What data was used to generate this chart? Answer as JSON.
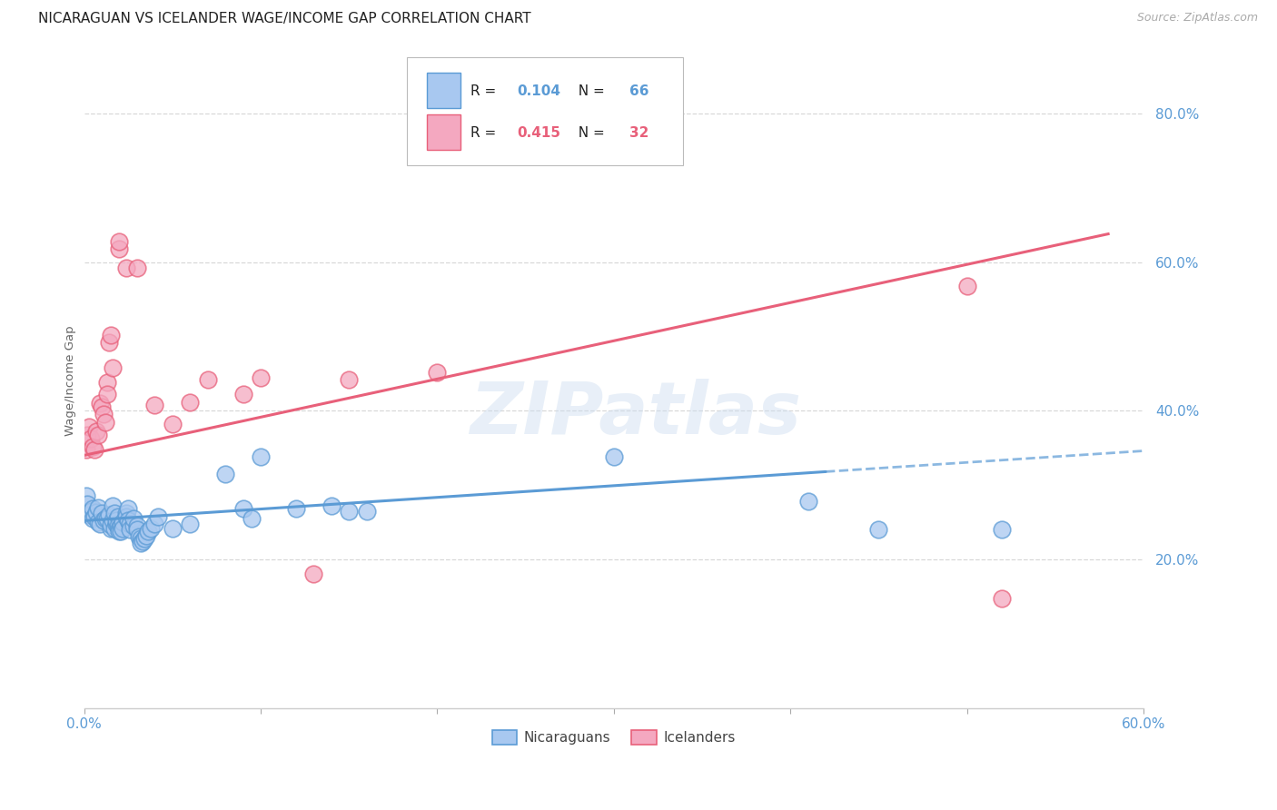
{
  "title": "NICARAGUAN VS ICELANDER WAGE/INCOME GAP CORRELATION CHART",
  "source": "Source: ZipAtlas.com",
  "ylabel": "Wage/Income Gap",
  "xlim": [
    0.0,
    0.6
  ],
  "ylim": [
    0.0,
    0.88
  ],
  "yticks": [
    0.2,
    0.4,
    0.6,
    0.8
  ],
  "xticks": [
    0.0,
    0.1,
    0.2,
    0.3,
    0.4,
    0.5,
    0.6
  ],
  "xtick_labels": [
    "0.0%",
    "",
    "",
    "",
    "",
    "",
    "60.0%"
  ],
  "ytick_labels": [
    "20.0%",
    "40.0%",
    "60.0%",
    "80.0%"
  ],
  "r_blue": 0.104,
  "n_blue": 66,
  "r_pink": 0.415,
  "n_pink": 32,
  "blue_scatter": [
    [
      0.001,
      0.285
    ],
    [
      0.002,
      0.275
    ],
    [
      0.003,
      0.26
    ],
    [
      0.004,
      0.265
    ],
    [
      0.005,
      0.268
    ],
    [
      0.005,
      0.255
    ],
    [
      0.006,
      0.258
    ],
    [
      0.007,
      0.263
    ],
    [
      0.008,
      0.27
    ],
    [
      0.008,
      0.25
    ],
    [
      0.009,
      0.248
    ],
    [
      0.01,
      0.262
    ],
    [
      0.011,
      0.252
    ],
    [
      0.012,
      0.255
    ],
    [
      0.013,
      0.255
    ],
    [
      0.014,
      0.26
    ],
    [
      0.015,
      0.242
    ],
    [
      0.015,
      0.246
    ],
    [
      0.016,
      0.253
    ],
    [
      0.016,
      0.272
    ],
    [
      0.017,
      0.262
    ],
    [
      0.017,
      0.242
    ],
    [
      0.018,
      0.248
    ],
    [
      0.018,
      0.252
    ],
    [
      0.019,
      0.258
    ],
    [
      0.019,
      0.245
    ],
    [
      0.02,
      0.242
    ],
    [
      0.02,
      0.238
    ],
    [
      0.021,
      0.245
    ],
    [
      0.021,
      0.238
    ],
    [
      0.022,
      0.25
    ],
    [
      0.022,
      0.242
    ],
    [
      0.024,
      0.262
    ],
    [
      0.024,
      0.258
    ],
    [
      0.025,
      0.268
    ],
    [
      0.025,
      0.252
    ],
    [
      0.026,
      0.248
    ],
    [
      0.026,
      0.24
    ],
    [
      0.028,
      0.245
    ],
    [
      0.028,
      0.255
    ],
    [
      0.03,
      0.245
    ],
    [
      0.03,
      0.24
    ],
    [
      0.031,
      0.23
    ],
    [
      0.032,
      0.228
    ],
    [
      0.032,
      0.222
    ],
    [
      0.033,
      0.225
    ],
    [
      0.034,
      0.228
    ],
    [
      0.035,
      0.232
    ],
    [
      0.036,
      0.238
    ],
    [
      0.038,
      0.242
    ],
    [
      0.04,
      0.248
    ],
    [
      0.042,
      0.258
    ],
    [
      0.05,
      0.242
    ],
    [
      0.06,
      0.248
    ],
    [
      0.08,
      0.315
    ],
    [
      0.09,
      0.268
    ],
    [
      0.095,
      0.255
    ],
    [
      0.1,
      0.338
    ],
    [
      0.12,
      0.268
    ],
    [
      0.14,
      0.272
    ],
    [
      0.15,
      0.265
    ],
    [
      0.16,
      0.265
    ],
    [
      0.3,
      0.338
    ],
    [
      0.41,
      0.278
    ],
    [
      0.45,
      0.24
    ],
    [
      0.52,
      0.24
    ]
  ],
  "pink_scatter": [
    [
      0.001,
      0.348
    ],
    [
      0.002,
      0.368
    ],
    [
      0.003,
      0.378
    ],
    [
      0.004,
      0.362
    ],
    [
      0.005,
      0.352
    ],
    [
      0.006,
      0.348
    ],
    [
      0.007,
      0.372
    ],
    [
      0.008,
      0.368
    ],
    [
      0.009,
      0.41
    ],
    [
      0.01,
      0.405
    ],
    [
      0.011,
      0.395
    ],
    [
      0.012,
      0.385
    ],
    [
      0.013,
      0.438
    ],
    [
      0.013,
      0.422
    ],
    [
      0.014,
      0.492
    ],
    [
      0.015,
      0.502
    ],
    [
      0.016,
      0.458
    ],
    [
      0.02,
      0.618
    ],
    [
      0.02,
      0.628
    ],
    [
      0.024,
      0.592
    ],
    [
      0.03,
      0.592
    ],
    [
      0.04,
      0.408
    ],
    [
      0.05,
      0.382
    ],
    [
      0.06,
      0.412
    ],
    [
      0.07,
      0.442
    ],
    [
      0.09,
      0.422
    ],
    [
      0.1,
      0.445
    ],
    [
      0.13,
      0.18
    ],
    [
      0.15,
      0.442
    ],
    [
      0.2,
      0.452
    ],
    [
      0.5,
      0.568
    ],
    [
      0.52,
      0.148
    ]
  ],
  "blue_line_solid": {
    "x0": 0.0,
    "x1": 0.42,
    "y0": 0.252,
    "y1": 0.318
  },
  "blue_line_dash": {
    "x0": 0.42,
    "x1": 0.6,
    "y0": 0.318,
    "y1": 0.346
  },
  "pink_line": {
    "x0": 0.0,
    "x1": 0.58,
    "y0": 0.34,
    "y1": 0.638
  },
  "blue_color": "#5b9bd5",
  "pink_color": "#e8607a",
  "blue_scatter_color": "#a8c8f0",
  "pink_scatter_color": "#f4a8c0",
  "watermark": "ZIPatlas",
  "background_color": "#ffffff",
  "grid_color": "#d8d8d8",
  "title_fontsize": 11,
  "tick_label_color": "#5b9bd5",
  "source_color": "#aaaaaa"
}
